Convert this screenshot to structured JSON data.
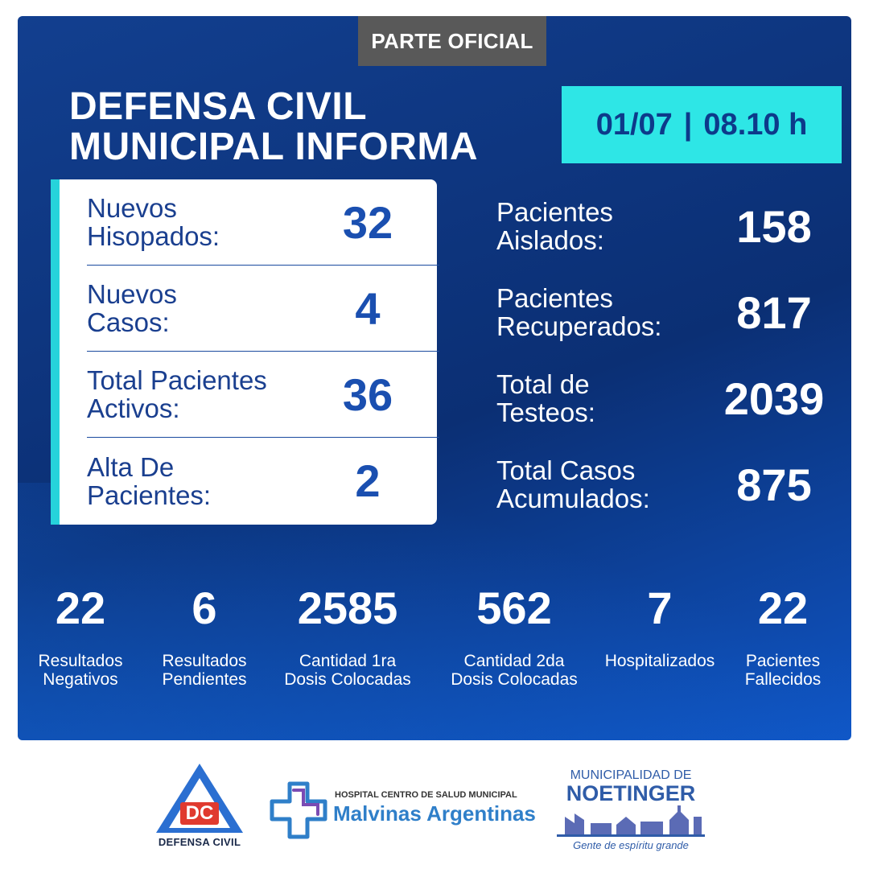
{
  "header": {
    "tab_label": "PARTE OFICIAL",
    "title_line1": "DEFENSA CIVIL",
    "title_line2": "MUNICIPAL INFORMA",
    "date": "01/07",
    "separator": "|",
    "time": "08.10 h"
  },
  "card": [
    {
      "label_line1": "Nuevos",
      "label_line2": "Hisopados:",
      "value": "32"
    },
    {
      "label_line1": "Nuevos",
      "label_line2": "Casos:",
      "value": "4"
    },
    {
      "label_line1": "Total Pacientes",
      "label_line2": "Activos:",
      "value": "36"
    },
    {
      "label_line1": "Alta De",
      "label_line2": "Pacientes:",
      "value": "2"
    }
  ],
  "stats": [
    {
      "label_line1": "Pacientes",
      "label_line2": "Aislados:",
      "value": "158"
    },
    {
      "label_line1": "Pacientes",
      "label_line2": "Recuperados:",
      "value": "817"
    },
    {
      "label_line1": "Total de",
      "label_line2": "Testeos:",
      "value": "2039"
    },
    {
      "label_line1": "Total Casos",
      "label_line2": "Acumulados:",
      "value": "875"
    }
  ],
  "bottom": [
    {
      "value": "22",
      "label_line1": "Resultados",
      "label_line2": "Negativos"
    },
    {
      "value": "6",
      "label_line1": "Resultados",
      "label_line2": "Pendientes"
    },
    {
      "value": "2585",
      "label_line1": "Cantidad 1ra",
      "label_line2": "Dosis Colocadas"
    },
    {
      "value": "562",
      "label_line1": "Cantidad 2da",
      "label_line2": "Dosis Colocadas"
    },
    {
      "value": "7",
      "label_line1": "Hospitalizados",
      "label_line2": ""
    },
    {
      "value": "22",
      "label_line1": "Pacientes",
      "label_line2": "Fallecidos"
    }
  ],
  "logos": {
    "defensa_civil": {
      "initials": "DC",
      "name": "DEFENSA CIVIL"
    },
    "hospital": {
      "subtitle": "HOSPITAL CENTRO DE SALUD MUNICIPAL",
      "name": "Malvinas Argentinas"
    },
    "municipalidad": {
      "top": "MUNICIPALIDAD DE",
      "name": "NOETINGER",
      "slogan": "Gente de espíritu grande"
    }
  },
  "colors": {
    "panel_blue": "#0b2f74",
    "accent_cyan": "#2ee6e6",
    "card_text_blue": "#1a3f8f",
    "tab_gray": "#595959",
    "dc_red": "#e03a2f"
  }
}
